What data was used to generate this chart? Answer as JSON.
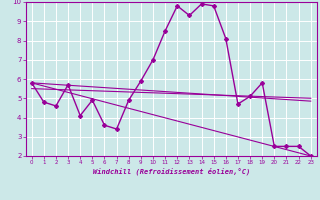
{
  "xlabel": "Windchill (Refroidissement éolien,°C)",
  "xlim": [
    -0.5,
    23.5
  ],
  "ylim": [
    2,
    10
  ],
  "yticks": [
    2,
    3,
    4,
    5,
    6,
    7,
    8,
    9,
    10
  ],
  "xticks": [
    0,
    1,
    2,
    3,
    4,
    5,
    6,
    7,
    8,
    9,
    10,
    11,
    12,
    13,
    14,
    15,
    16,
    17,
    18,
    19,
    20,
    21,
    22,
    23
  ],
  "background_color": "#cce8e8",
  "line_color": "#990099",
  "grid_color": "#b0d8d8",
  "line1_x": [
    0,
    1,
    2,
    3,
    4,
    5,
    6,
    7,
    8,
    9,
    10,
    11,
    12,
    13,
    14,
    15,
    16,
    17,
    18,
    19,
    20,
    21,
    22,
    23
  ],
  "line1_y": [
    5.8,
    4.8,
    4.6,
    5.7,
    4.1,
    4.9,
    3.6,
    3.4,
    4.9,
    5.9,
    7.0,
    8.5,
    9.8,
    9.3,
    9.9,
    9.8,
    8.1,
    4.7,
    5.1,
    5.8,
    2.5,
    2.5,
    2.5,
    2.0
  ],
  "line2_x": [
    0,
    23
  ],
  "line2_y": [
    5.8,
    4.85
  ],
  "line3_x": [
    0,
    23
  ],
  "line3_y": [
    5.5,
    5.0
  ],
  "line4_x": [
    0,
    23
  ],
  "line4_y": [
    5.8,
    2.0
  ]
}
